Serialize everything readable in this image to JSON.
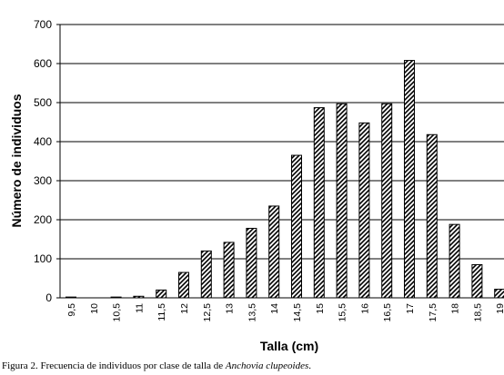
{
  "chart_data": {
    "type": "bar",
    "categories": [
      "9,5",
      "10",
      "10,5",
      "11",
      "11,5",
      "12",
      "12,5",
      "13",
      "13,5",
      "14",
      "14,5",
      "15",
      "15,5",
      "16",
      "16,5",
      "17",
      "17,5",
      "18",
      "18,5",
      "19"
    ],
    "values": [
      2,
      0,
      2,
      4,
      20,
      65,
      120,
      142,
      178,
      235,
      365,
      487,
      497,
      448,
      497,
      608,
      418,
      188,
      85,
      22
    ],
    "title": "",
    "xlabel": "Talla (cm)",
    "ylabel": "Número de individuos",
    "ylim": [
      0,
      700
    ],
    "yticks": [
      0,
      100,
      200,
      300,
      400,
      500,
      600,
      700
    ],
    "grid": true,
    "legend": "none",
    "bar_pattern": "diagonal-hatch",
    "colors": {
      "bar_fill": "#ffffff",
      "hatch": "#000000",
      "grid": "#000000"
    }
  },
  "caption": {
    "prefix": "Figura 2. Frecuencia de individuos por clase de talla de ",
    "species": "Anchovia clupeoides",
    "suffix": "."
  }
}
